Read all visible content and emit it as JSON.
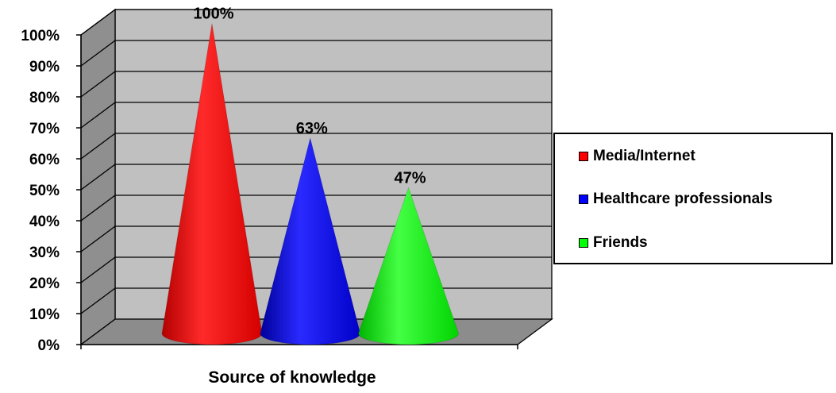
{
  "chart_data": {
    "type": "bar",
    "style": "3d-cone",
    "categories": [
      "Media/Internet",
      "Healthcare professionals",
      "Friends"
    ],
    "values": [
      100,
      63,
      47
    ],
    "data_labels": [
      "100%",
      "63%",
      "47%"
    ],
    "xlabel": "Source of knowledge",
    "ylabel": "",
    "ylim": [
      0,
      100
    ],
    "yticks": [
      "0%",
      "10%",
      "20%",
      "30%",
      "40%",
      "50%",
      "60%",
      "70%",
      "80%",
      "90%",
      "100%"
    ],
    "grid": true,
    "legend": "right",
    "colors": [
      "#ff0000",
      "#0000ff",
      "#00ff00"
    ],
    "wall_color": "#c0c0c0",
    "floor_color": "#8c8c8c"
  }
}
